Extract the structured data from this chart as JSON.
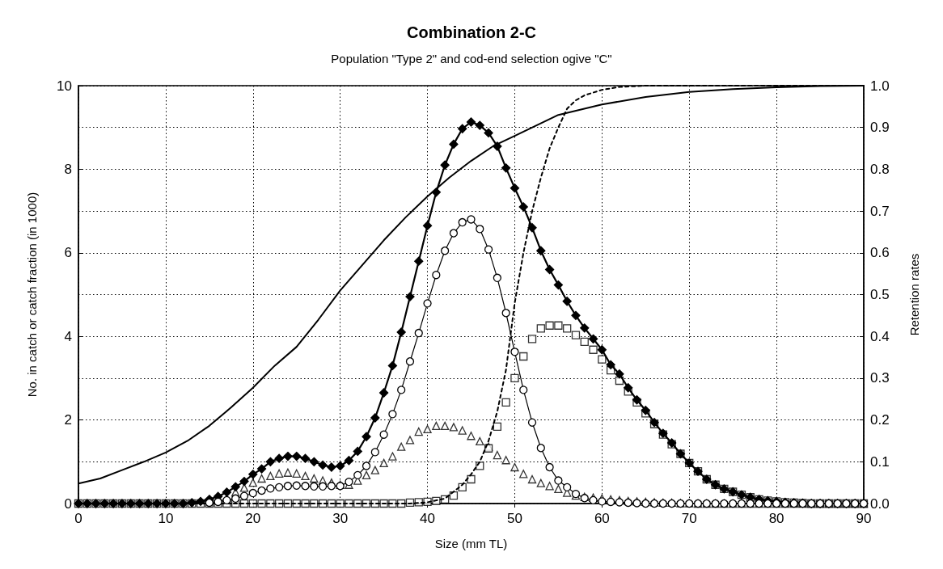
{
  "chart_data": {
    "type": "line",
    "title": "Combination 2-C",
    "subtitle": "Population \"Type 2\" and cod-end selection ogive \"C\"",
    "xlabel": "Size (mm TL)",
    "ylabel": "No. in catch or catch fraction (in 1000)",
    "y2label": "Retention rates",
    "x": [
      0,
      1,
      2,
      3,
      4,
      5,
      6,
      7,
      8,
      9,
      10,
      11,
      12,
      13,
      14,
      15,
      16,
      17,
      18,
      19,
      20,
      21,
      22,
      23,
      24,
      25,
      26,
      27,
      28,
      29,
      30,
      31,
      32,
      33,
      34,
      35,
      36,
      37,
      38,
      39,
      40,
      41,
      42,
      43,
      44,
      45,
      46,
      47,
      48,
      49,
      50,
      51,
      52,
      53,
      54,
      55,
      56,
      57,
      58,
      59,
      60,
      61,
      62,
      63,
      64,
      65,
      66,
      67,
      68,
      69,
      70,
      71,
      72,
      73,
      74,
      75,
      76,
      77,
      78,
      79,
      80,
      81,
      82,
      83,
      84,
      85,
      86,
      87,
      88,
      89,
      90
    ],
    "series": [
      {
        "marker": "diamond",
        "color": "#000000",
        "values": [
          0,
          0,
          0,
          0,
          0,
          0,
          0,
          0,
          0,
          0,
          0,
          0,
          0,
          0.02,
          0.05,
          0.1,
          0.17,
          0.27,
          0.4,
          0.53,
          0.7,
          0.83,
          1.0,
          1.08,
          1.13,
          1.13,
          1.08,
          1.0,
          0.92,
          0.87,
          0.9,
          1.03,
          1.25,
          1.6,
          2.05,
          2.65,
          3.3,
          4.1,
          4.95,
          5.8,
          6.65,
          7.45,
          8.1,
          8.6,
          8.97,
          9.13,
          9.05,
          8.87,
          8.55,
          8.03,
          7.55,
          7.1,
          6.6,
          6.05,
          5.6,
          5.23,
          4.84,
          4.5,
          4.2,
          3.94,
          3.68,
          3.32,
          3.1,
          2.77,
          2.48,
          2.23,
          1.94,
          1.68,
          1.45,
          1.19,
          0.97,
          0.77,
          0.58,
          0.45,
          0.35,
          0.28,
          0.21,
          0.15,
          0.1,
          0.07,
          0.05,
          0.03,
          0.02,
          0.01,
          0,
          0,
          0,
          0,
          0,
          0,
          0
        ]
      },
      {
        "marker": "circle",
        "color": "#000000",
        "values": [
          null,
          null,
          null,
          null,
          null,
          null,
          null,
          null,
          null,
          null,
          null,
          null,
          null,
          null,
          null,
          0.02,
          0.04,
          0.08,
          0.12,
          0.18,
          0.25,
          0.31,
          0.36,
          0.39,
          0.42,
          0.43,
          0.42,
          0.41,
          0.41,
          0.42,
          0.42,
          0.52,
          0.68,
          0.9,
          1.23,
          1.65,
          2.14,
          2.72,
          3.4,
          4.08,
          4.79,
          5.47,
          6.05,
          6.47,
          6.73,
          6.8,
          6.57,
          6.08,
          5.4,
          4.56,
          3.63,
          2.72,
          1.94,
          1.33,
          0.87,
          0.55,
          0.39,
          0.23,
          0.13,
          0.08,
          0.05,
          0.04,
          0.03,
          0.02,
          0.01,
          0,
          0,
          0,
          0,
          0,
          0,
          0,
          0,
          0,
          0,
          0,
          0,
          0,
          0,
          0,
          0,
          0,
          0,
          0,
          0,
          0,
          0,
          0,
          0,
          0,
          0
        ]
      },
      {
        "type": "scatter",
        "marker": "triangle",
        "color": "#000000",
        "values": [
          null,
          null,
          null,
          null,
          null,
          null,
          null,
          null,
          null,
          null,
          null,
          null,
          null,
          null,
          null,
          null,
          null,
          null,
          0.27,
          0.38,
          0.5,
          0.6,
          0.66,
          0.72,
          0.74,
          0.72,
          0.66,
          0.6,
          0.55,
          0.5,
          0.45,
          0.45,
          0.55,
          0.68,
          0.8,
          0.97,
          1.13,
          1.36,
          1.52,
          1.72,
          1.78,
          1.86,
          1.86,
          1.83,
          1.75,
          1.62,
          1.49,
          1.36,
          1.16,
          1.04,
          0.87,
          0.71,
          0.58,
          0.49,
          0.42,
          0.35,
          0.26,
          0.19,
          0.16,
          0.14,
          0.12,
          0.1,
          0.08,
          0.06,
          0.05,
          0.04,
          0.03,
          0.02,
          0.02,
          0.01,
          0.01,
          0,
          0,
          0,
          0,
          0,
          0,
          0,
          0,
          0,
          0,
          0,
          0,
          0,
          0,
          0,
          0,
          0,
          0,
          0,
          0
        ]
      },
      {
        "type": "scatter",
        "marker": "square",
        "color": "#000000",
        "values": [
          0,
          0,
          0,
          0,
          0,
          0,
          0,
          0,
          0,
          0,
          0,
          0,
          0,
          0,
          0,
          0,
          0,
          0,
          0,
          0,
          0,
          0,
          0,
          0,
          0,
          0,
          0,
          0,
          0,
          0,
          0,
          0,
          0,
          0,
          0,
          0,
          0,
          0,
          0.02,
          0.03,
          0.04,
          0.06,
          0.1,
          0.19,
          0.39,
          0.58,
          0.9,
          1.32,
          1.84,
          2.42,
          3.0,
          3.52,
          3.94,
          4.19,
          4.26,
          4.26,
          4.19,
          4.03,
          3.87,
          3.68,
          3.45,
          3.19,
          2.94,
          2.68,
          2.42,
          2.16,
          1.9,
          1.65,
          1.42,
          1.19,
          0.97,
          0.77,
          0.58,
          0.45,
          0.35,
          0.28,
          0.21,
          0.15,
          0.1,
          0.07,
          0.05,
          0.03,
          0.02,
          0.01,
          0,
          0,
          0,
          0,
          0,
          0,
          0
        ]
      },
      {
        "type": "line",
        "axis": "y2",
        "marker": "none",
        "line_style": "solid",
        "color": "#000000",
        "x": [
          0,
          2.5,
          5,
          7.5,
          10,
          12.5,
          15,
          17.5,
          20,
          22.5,
          25,
          27.5,
          30,
          32.5,
          35,
          37.5,
          40,
          42.5,
          45,
          47.5,
          50,
          55,
          60,
          65,
          70,
          75,
          80,
          85,
          90
        ],
        "values": [
          0.048,
          0.06,
          0.08,
          0.1,
          0.122,
          0.15,
          0.186,
          0.23,
          0.277,
          0.33,
          0.375,
          0.44,
          0.51,
          0.57,
          0.63,
          0.685,
          0.735,
          0.78,
          0.82,
          0.855,
          0.88,
          0.93,
          0.955,
          0.973,
          0.985,
          0.992,
          0.996,
          0.999,
          1.0
        ]
      },
      {
        "type": "line",
        "axis": "y2",
        "marker": "none",
        "line_style": "dashed",
        "color": "#000000",
        "x": [
          0,
          38,
          40,
          42,
          44,
          45,
          46,
          47,
          48,
          49,
          50,
          51,
          52,
          53,
          54,
          55,
          56,
          57,
          58,
          60,
          62,
          65,
          90
        ],
        "values": [
          0,
          0,
          0.003,
          0.012,
          0.045,
          0.07,
          0.1,
          0.15,
          0.22,
          0.32,
          0.48,
          0.6,
          0.7,
          0.78,
          0.85,
          0.9,
          0.945,
          0.965,
          0.977,
          0.99,
          0.997,
          1.0,
          1.0
        ]
      }
    ],
    "xlim": [
      0,
      90
    ],
    "xticks": [
      0,
      10,
      20,
      30,
      40,
      50,
      60,
      70,
      80,
      90
    ],
    "ylim": [
      0,
      10
    ],
    "yticks": [
      0,
      2,
      4,
      6,
      8,
      10
    ],
    "y2lim": [
      0,
      1
    ],
    "y2ticks": [
      {
        "value": 0,
        "label": "0.0"
      },
      {
        "value": 0.1,
        "label": "0.1"
      },
      {
        "value": 0.2,
        "label": "0.2"
      },
      {
        "value": 0.3,
        "label": "0.3"
      },
      {
        "value": 0.4,
        "label": "0.4"
      },
      {
        "value": 0.5,
        "label": "0.5"
      },
      {
        "value": 0.6,
        "label": "0.6"
      },
      {
        "value": 0.7,
        "label": "0.7"
      },
      {
        "value": 0.8,
        "label": "0.8"
      },
      {
        "value": 0.9,
        "label": "0.9"
      },
      {
        "value": 1,
        "label": "1.0"
      }
    ],
    "grid": true
  }
}
